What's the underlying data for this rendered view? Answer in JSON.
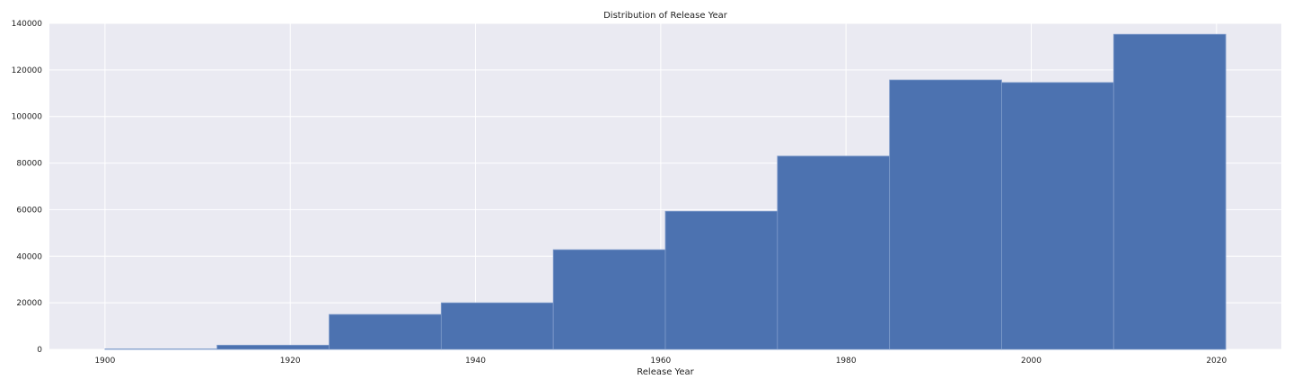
{
  "chart_data": {
    "type": "bar",
    "title": "Distribution of Release Year",
    "xlabel": "Release Year",
    "ylabel": "",
    "xlim": [
      1894,
      2027
    ],
    "ylim": [
      0,
      140000
    ],
    "xticks": [
      1900,
      1920,
      1940,
      1960,
      1980,
      2000,
      2020
    ],
    "yticks": [
      0,
      20000,
      40000,
      60000,
      80000,
      100000,
      120000,
      140000
    ],
    "bin_edges": [
      1900,
      1912.1,
      1924.2,
      1936.3,
      1948.4,
      1960.5,
      1972.6,
      1984.7,
      1996.8,
      2008.9,
      2021
    ],
    "values": [
      200,
      1800,
      15000,
      20000,
      42800,
      59300,
      83000,
      115700,
      114600,
      135300
    ],
    "grid": true,
    "style": "seaborn",
    "colors": {
      "plot_background": "#eaeaf2",
      "bar_fill": "#4c72b0",
      "bar_edge": "#7f9ccb",
      "grid": "#ffffff",
      "text": "#222222"
    }
  }
}
